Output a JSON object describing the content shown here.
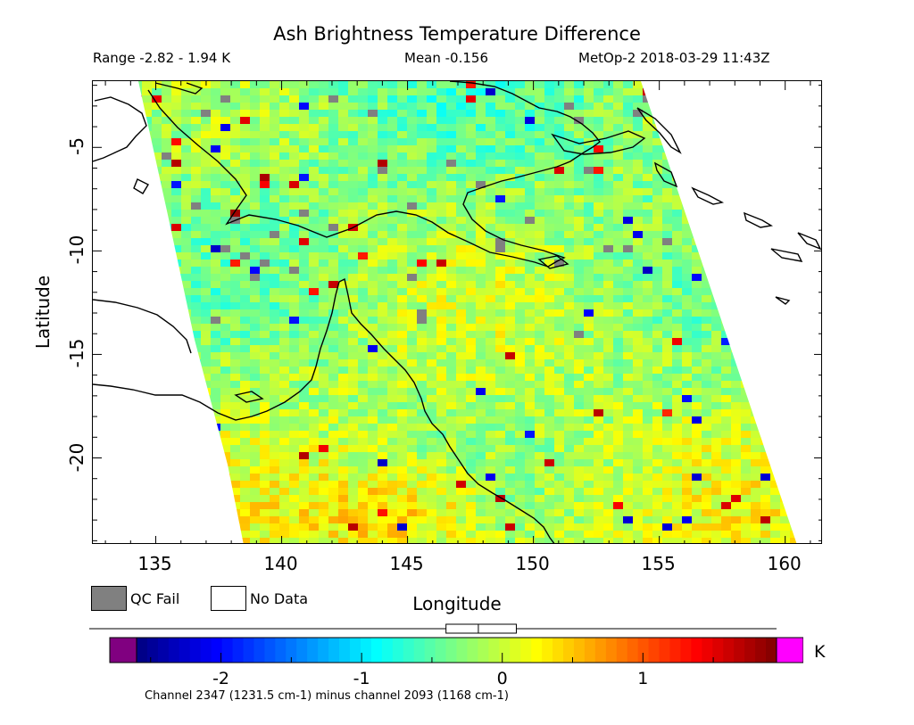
{
  "title": "Ash Brightness Temperature Difference",
  "range_text": "Range -2.82 - 1.94 K",
  "mean_text": "Mean -0.156",
  "sat_text": "MetOp-2 2018-03-29 11:43Z",
  "axes": {
    "xlabel": "Longitude",
    "ylabel": "Latitude",
    "xticks": [
      "135",
      "140",
      "145",
      "150",
      "155",
      "160"
    ],
    "yticks": [
      "-5",
      "-10",
      "-15",
      "-20"
    ],
    "lon_range": [
      132.5,
      161.5
    ],
    "lat_range": [
      -1.8,
      -24.2
    ]
  },
  "legend": {
    "qc_fail_label": "QC Fail",
    "no_data_label": "No Data",
    "qc_fail_color": "#808080",
    "no_data_color": "#ffffff"
  },
  "colorbar": {
    "labels": [
      "-2",
      "-1",
      "0",
      "1"
    ],
    "unit": "K",
    "min": -2.6,
    "max": 1.95,
    "under_color": "#800080",
    "over_color": "#ff00ff",
    "box_lower": -0.4,
    "box_median": -0.17,
    "box_upper": 0.1
  },
  "footnote": "Channel 2347 (1231.5 cm-1) minus channel 2093 (1168 cm-1)"
}
